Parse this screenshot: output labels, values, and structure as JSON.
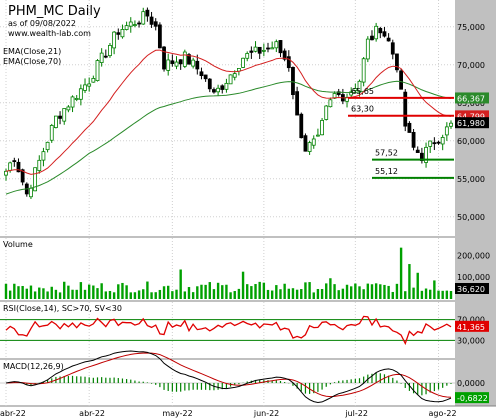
{
  "header": {
    "title": "PHM_MC Daily",
    "date_line": "as of 09/08/2022",
    "site": "www.wealth-lab.com",
    "ema1_label": "EMA(Close,21)",
    "ema2_label": "EMA(Close,70)"
  },
  "colors": {
    "up": "#008000",
    "down": "#000000",
    "ema_fast": "#d42020",
    "ema_slow": "#2a8a2a",
    "volume": "#00a000",
    "rsi": "#e00000",
    "macd": "#000000",
    "signal": "#c00000",
    "axis_bg": "#c0c0c0",
    "support": "#008000",
    "resistance": "#e00000"
  },
  "chart_data": [
    {
      "type": "candlestick",
      "title": "PHM_MC Daily",
      "ylim": [
        48,
        78
      ],
      "yticks": [
        50,
        55,
        60,
        65,
        70,
        75
      ],
      "ytick_labels": [
        "50,000",
        "55,000",
        "60,000",
        "65,000",
        "70,000",
        "75,000"
      ],
      "x_labels": [
        "abr-22",
        "abr-22",
        "may-22",
        "jun-22",
        "jul-22",
        "ago-22"
      ],
      "series": [
        {
          "name": "EMA(Close,21)",
          "last": "64,799"
        },
        {
          "name": "EMA(Close,70)",
          "last": "66,367"
        }
      ],
      "last_close": "61,980",
      "levels": [
        {
          "label": "65,65",
          "value": 65.65,
          "color": "red"
        },
        {
          "label": "63,30",
          "value": 63.3,
          "color": "red"
        },
        {
          "label": "57,52",
          "value": 57.52,
          "color": "green"
        },
        {
          "label": "55,12",
          "value": 55.12,
          "color": "green"
        }
      ]
    },
    {
      "type": "bar",
      "title": "Volume",
      "ylim": [
        0,
        270000
      ],
      "yticks": [
        100000,
        200000
      ],
      "ytick_labels": [
        "100,000",
        "200,000"
      ],
      "last": "36,620"
    },
    {
      "type": "line",
      "title": "RSI(Close,14), SC>70, SV<30",
      "ylim": [
        0,
        100
      ],
      "yticks": [
        30,
        70
      ],
      "ytick_labels": [
        "30,000",
        "70,000"
      ],
      "last": "41,365"
    },
    {
      "type": "line",
      "title": "MACD(12,26,9)",
      "ylim": [
        -2.8,
        2.8
      ],
      "yticks": [
        0
      ],
      "ytick_labels": [
        "0,0000"
      ],
      "last": "-0,6822"
    }
  ]
}
